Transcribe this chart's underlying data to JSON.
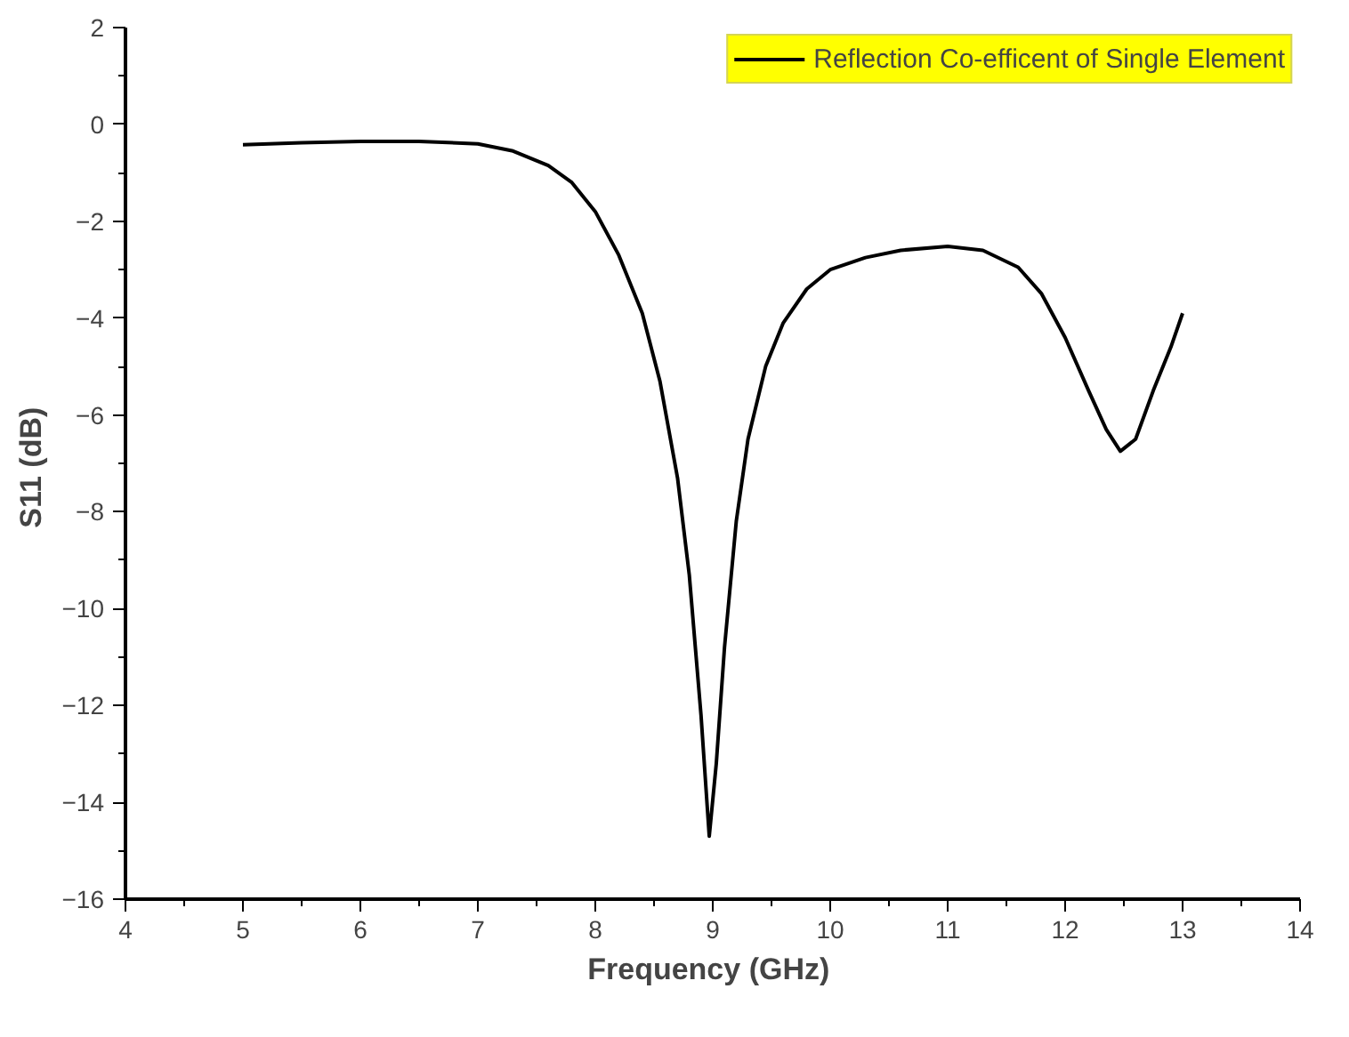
{
  "chart_data": {
    "type": "line",
    "xlabel": "Frequency  (GHz)",
    "ylabel": "S11  (dB)",
    "xlim": [
      4,
      14
    ],
    "ylim": [
      -16,
      2
    ],
    "xticks": [
      4,
      5,
      6,
      7,
      8,
      9,
      10,
      11,
      12,
      13,
      14
    ],
    "yticks": [
      -16,
      -14,
      -12,
      -10,
      -8,
      -6,
      -4,
      -2,
      0,
      2
    ],
    "grid": false,
    "legend": "top right",
    "line_style": "solid",
    "marker": "none",
    "series": [
      {
        "name": "Reflection Co-efficent of Single Element",
        "color": "#000000",
        "x": [
          5,
          5.5,
          6,
          6.5,
          7,
          7.3,
          7.6,
          7.8,
          8,
          8.2,
          8.4,
          8.55,
          8.7,
          8.8,
          8.9,
          8.97,
          9.03,
          9.1,
          9.2,
          9.3,
          9.45,
          9.6,
          9.8,
          10,
          10.3,
          10.6,
          11,
          11.3,
          11.6,
          11.8,
          12,
          12.2,
          12.35,
          12.47,
          12.6,
          12.75,
          12.9,
          13
        ],
        "values": [
          -0.42,
          -0.38,
          -0.35,
          -0.35,
          -0.4,
          -0.55,
          -0.85,
          -1.2,
          -1.8,
          -2.7,
          -3.9,
          -5.3,
          -7.3,
          -9.3,
          -12.2,
          -14.7,
          -13.2,
          -10.8,
          -8.2,
          -6.5,
          -5,
          -4.1,
          -3.4,
          -3,
          -2.75,
          -2.6,
          -2.52,
          -2.6,
          -2.95,
          -3.5,
          -4.4,
          -5.5,
          -6.3,
          -6.75,
          -6.5,
          -5.5,
          -4.6,
          -3.9
        ]
      }
    ]
  }
}
